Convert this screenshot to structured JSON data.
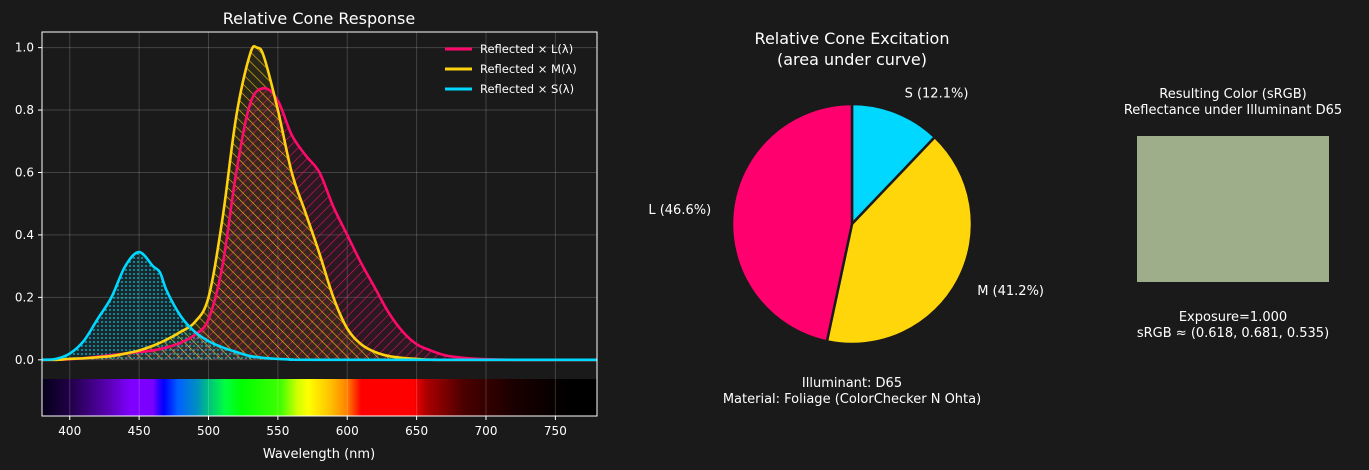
{
  "background": "#1a1a1a",
  "chart_data": [
    {
      "type": "area",
      "title": "Relative Cone Response",
      "xlabel": "Wavelength (nm)",
      "ylabel": "",
      "xlim": [
        380,
        780
      ],
      "ylim": [
        -0.18,
        1.05
      ],
      "xticks": [
        400,
        450,
        500,
        550,
        600,
        650,
        700,
        750
      ],
      "yticks": [
        0.0,
        0.2,
        0.4,
        0.6,
        0.8,
        1.0
      ],
      "ytick_labels": [
        "0.0",
        "0.2",
        "0.4",
        "0.6",
        "0.8",
        "1.0"
      ],
      "grid": true,
      "legend_position": "top-right",
      "spectrum_band": true,
      "series": [
        {
          "name": "Reflected × L(λ)",
          "color": "#ff0a6c",
          "hatch": "diagonal-forward",
          "x": [
            380,
            390,
            400,
            410,
            420,
            430,
            440,
            450,
            460,
            470,
            480,
            490,
            500,
            510,
            520,
            530,
            540,
            550,
            560,
            570,
            580,
            590,
            600,
            610,
            620,
            630,
            640,
            650,
            660,
            670,
            680,
            690,
            700,
            720,
            780
          ],
          "y": [
            0,
            0,
            0.002,
            0.005,
            0.01,
            0.015,
            0.02,
            0.025,
            0.03,
            0.04,
            0.055,
            0.08,
            0.13,
            0.3,
            0.6,
            0.82,
            0.87,
            0.83,
            0.72,
            0.655,
            0.6,
            0.49,
            0.4,
            0.31,
            0.23,
            0.15,
            0.09,
            0.05,
            0.03,
            0.015,
            0.008,
            0.004,
            0.002,
            0,
            0
          ]
        },
        {
          "name": "Reflected × M(λ)",
          "color": "#ffd20f",
          "hatch": "diagonal-backward",
          "x": [
            380,
            390,
            400,
            410,
            420,
            430,
            440,
            450,
            460,
            470,
            480,
            490,
            500,
            510,
            520,
            530,
            535,
            540,
            550,
            560,
            570,
            580,
            590,
            600,
            610,
            620,
            630,
            640,
            650,
            670,
            780
          ],
          "y": [
            0,
            0,
            0.003,
            0.005,
            0.008,
            0.012,
            0.02,
            0.03,
            0.045,
            0.065,
            0.09,
            0.12,
            0.2,
            0.45,
            0.78,
            0.98,
            1.0,
            0.97,
            0.8,
            0.6,
            0.47,
            0.34,
            0.2,
            0.1,
            0.05,
            0.025,
            0.012,
            0.006,
            0.003,
            0,
            0
          ]
        },
        {
          "name": "Reflected × S(λ)",
          "color": "#00d8ff",
          "hatch": "dots",
          "x": [
            380,
            390,
            400,
            410,
            420,
            430,
            440,
            450,
            460,
            465,
            470,
            480,
            490,
            500,
            510,
            520,
            530,
            540,
            550,
            560,
            580,
            780
          ],
          "y": [
            0,
            0.003,
            0.02,
            0.06,
            0.13,
            0.2,
            0.3,
            0.345,
            0.3,
            0.28,
            0.22,
            0.14,
            0.09,
            0.06,
            0.04,
            0.025,
            0.012,
            0.006,
            0.003,
            0.001,
            0,
            0
          ]
        }
      ]
    },
    {
      "type": "pie",
      "title": "Relative Cone Excitation\n(area under curve)",
      "title_lines": [
        "Relative Cone Excitation",
        "(area under curve)"
      ],
      "slices": [
        {
          "label": "S (12.1%)",
          "value": 12.1,
          "color": "#00d8ff"
        },
        {
          "label": "M (41.2%)",
          "value": 41.2,
          "color": "#ffd60a"
        },
        {
          "label": "L (46.6%)",
          "value": 46.6,
          "color": "#ff006e"
        }
      ],
      "start_angle": 90,
      "direction": "clockwise",
      "footer": [
        "Illuminant: D65",
        "Material: Foliage (ColorChecker N Ohta)"
      ]
    }
  ],
  "swatch": {
    "title": [
      "Resulting Color (sRGB)",
      "Reflectance under Illuminant D65"
    ],
    "color": "#9fae8a",
    "caption": [
      "Exposure=1.000",
      "sRGB ≈ (0.618, 0.681, 0.535)"
    ]
  }
}
